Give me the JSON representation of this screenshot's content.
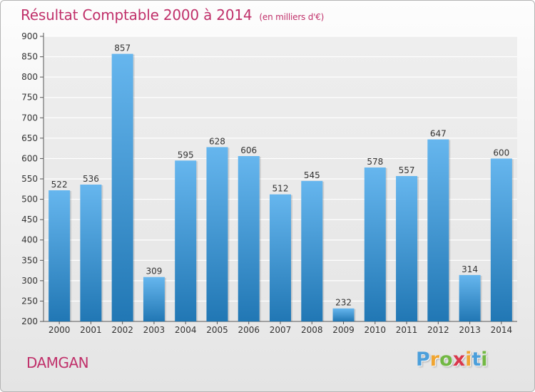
{
  "title": "Résultat Comptable 2000 à 2014",
  "subtitle": "(en milliers d'€)",
  "place": "DAMGAN",
  "logo": {
    "letters": [
      "P",
      "r",
      "o",
      "x",
      "i",
      "t",
      "i"
    ],
    "colors": [
      "#4b9fdb",
      "#f0a531",
      "#72b844",
      "#d9384c",
      "#f0a531",
      "#4b9fdb",
      "#72b844"
    ]
  },
  "colors": {
    "bar_top": "#66b6ee",
    "bar_bottom": "#2177b4",
    "text": "#333333",
    "accent": "#c0306a"
  },
  "chart_data": {
    "type": "bar",
    "title": "Résultat Comptable 2000 à 2014",
    "categories": [
      "2000",
      "2001",
      "2002",
      "2003",
      "2004",
      "2005",
      "2006",
      "2007",
      "2008",
      "2009",
      "2010",
      "2011",
      "2012",
      "2013",
      "2014"
    ],
    "values": [
      522,
      536,
      857,
      309,
      595,
      628,
      606,
      512,
      545,
      232,
      578,
      557,
      647,
      314,
      600
    ],
    "ylim": [
      200,
      900
    ],
    "yticks": [
      200,
      250,
      300,
      350,
      400,
      450,
      500,
      550,
      600,
      650,
      700,
      750,
      800,
      850,
      900
    ],
    "grid": true
  }
}
